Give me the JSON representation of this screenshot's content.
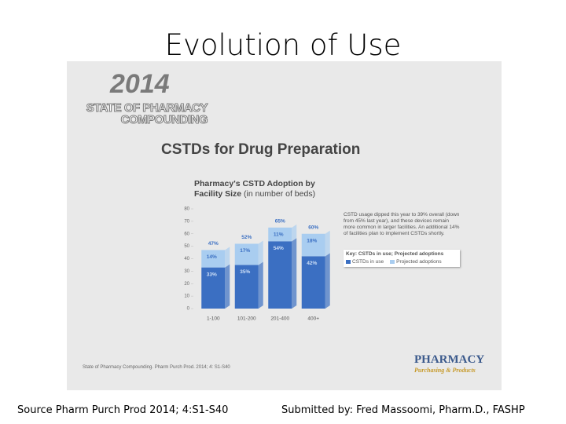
{
  "slide": {
    "title": "Evolution of Use",
    "footer_left": "Source Pharm Purch Prod 2014; 4:S1-S40",
    "footer_right": "Submitted by: Fred Massoomi, Pharm.D., FASHP"
  },
  "report": {
    "year": "2014",
    "name_lines": [
      "STATE OF PHARMACY",
      "COMPOUNDING"
    ],
    "source": "State of Pharmacy Compounding. Pharm Purch Prod. 2014; 4: S1-S40",
    "logo_top": "PHARMACY",
    "logo_bottom": "Purchasing & Products"
  },
  "chart_data": {
    "type": "stacked_bar",
    "title": "CSTDs for Drug Preparation",
    "subtitle_bold": "Pharmacy's CSTD Adoption by Facility Size",
    "subtitle_note": "(in number of beds)",
    "annotation": "CSTD usage dipped this year to 39% overall (down from 45% last year), and these devices remain more common in larger facilities. An additional 14% of facilities plan to implement CSTDs shortly.",
    "legend_title": "Key: CSTDs in use; Projected adoptions",
    "categories": [
      "1-100",
      "101-200",
      "201-400",
      "400+"
    ],
    "series": [
      {
        "name": "CSTDs in use",
        "color": "#3b6fc2",
        "values": [
          33,
          35,
          54,
          42
        ],
        "value_labels": [
          "33%",
          "35%",
          "54%",
          "42%"
        ]
      },
      {
        "name": "Projected adoptions",
        "color": "#a9cdf0",
        "values": [
          14,
          17,
          11,
          18
        ],
        "value_labels": [
          "14%",
          "17%",
          "11%",
          "18%"
        ]
      }
    ],
    "totals": [
      47,
      52,
      65,
      60
    ],
    "total_labels": [
      "47%",
      "52%",
      "65%",
      "60%"
    ],
    "ylim": [
      0,
      80
    ],
    "yticks": [
      0,
      10,
      20,
      30,
      40,
      50,
      60,
      70,
      80
    ],
    "grid": false
  }
}
